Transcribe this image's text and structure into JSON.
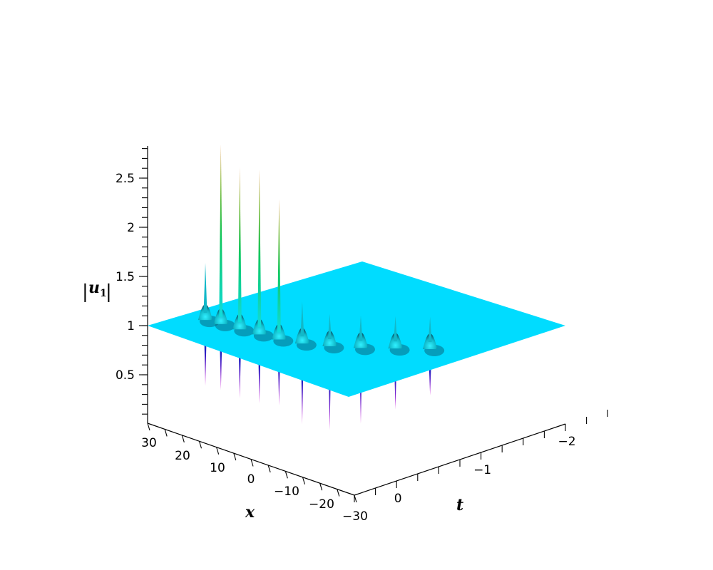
{
  "chart_data": {
    "type": "surface3d",
    "z_label": {
      "main": "u",
      "subscript": "1",
      "delimiter": "|"
    },
    "x_label": "x",
    "t_label": "t",
    "z_ticks": [
      "0.5",
      "1",
      "1.5",
      "2",
      "2.5"
    ],
    "x_ticks": [
      "30",
      "20",
      "10",
      "0",
      "−10",
      "−20",
      "−30"
    ],
    "t_ticks": [
      "0",
      "−1",
      "−2"
    ],
    "z_range": [
      0,
      2.8
    ],
    "x_range": [
      -30,
      30
    ],
    "t_range": [
      -2.5,
      0.5
    ],
    "background_level": 1,
    "surface_color": "#00dcff",
    "peaks": [
      {
        "x": 26,
        "t": -0.12,
        "max": 1.55,
        "min": 0.3
      },
      {
        "x": 22,
        "t": -0.15,
        "max": 2.8,
        "min": 0.3
      },
      {
        "x": 17,
        "t": -0.18,
        "max": 2.62,
        "min": 0.27
      },
      {
        "x": 12,
        "t": -0.22,
        "max": 2.65,
        "min": 0.27
      },
      {
        "x": 7,
        "t": -0.26,
        "max": 2.4,
        "min": 0.3
      },
      {
        "x": 2,
        "t": -0.35,
        "max": 1.4,
        "min": 0.15
      },
      {
        "x": -3,
        "t": -0.5,
        "max": 1.3,
        "min": 0.12
      },
      {
        "x": -8,
        "t": -0.7,
        "max": 1.3,
        "min": 0.2
      },
      {
        "x": -13,
        "t": -0.95,
        "max": 1.3,
        "min": 0.35
      },
      {
        "x": -18,
        "t": -1.2,
        "max": 1.3,
        "min": 0.5
      }
    ]
  }
}
